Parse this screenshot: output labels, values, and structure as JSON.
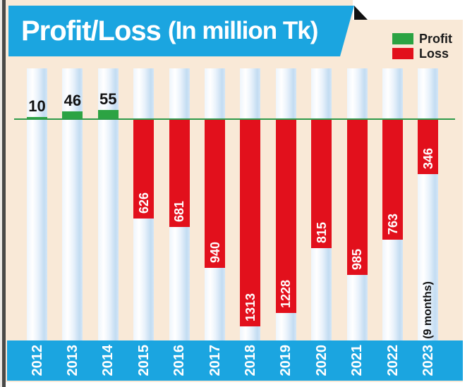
{
  "title": {
    "main": "Profit/Loss",
    "sub": "(In million Tk)"
  },
  "legend": {
    "items": [
      {
        "label": "Profit",
        "color": "#2ca343"
      },
      {
        "label": "Loss",
        "color": "#e2101c"
      }
    ]
  },
  "colors": {
    "background_cream": "#f9e9d7",
    "banner_blue": "#1ba5e0",
    "year_band_blue": "#1ba5e0",
    "profit_green": "#2ca343",
    "loss_red": "#e2101c",
    "baseline_green": "#2e9b4a",
    "fold_black": "#111111",
    "loss_value_text": "#ffffff",
    "profit_value_text": "#111111"
  },
  "chart_data": {
    "type": "bar",
    "title": "Profit/Loss (In million Tk)",
    "unit": "million Tk",
    "categories": [
      "2012",
      "2013",
      "2014",
      "2015",
      "2016",
      "2017",
      "2018",
      "2019",
      "2020",
      "2021",
      "2022",
      "2023"
    ],
    "series": [
      {
        "name": "Profit",
        "color": "#2ca343",
        "values": [
          10,
          46,
          55,
          null,
          null,
          null,
          null,
          null,
          null,
          null,
          null,
          null
        ]
      },
      {
        "name": "Loss",
        "color": "#e2101c",
        "values": [
          null,
          null,
          null,
          626,
          681,
          940,
          1313,
          1228,
          815,
          985,
          763,
          346
        ]
      }
    ],
    "data_labels": [
      "10",
      "46",
      "55",
      "626",
      "681",
      "940",
      "1313",
      "1228",
      "815",
      "985",
      "763",
      "346"
    ],
    "annotations": [
      {
        "category": "2023",
        "text": "(9 months)"
      }
    ],
    "baseline": 0,
    "orientation": "vertical",
    "grid": false,
    "legend_position": "top-right"
  }
}
